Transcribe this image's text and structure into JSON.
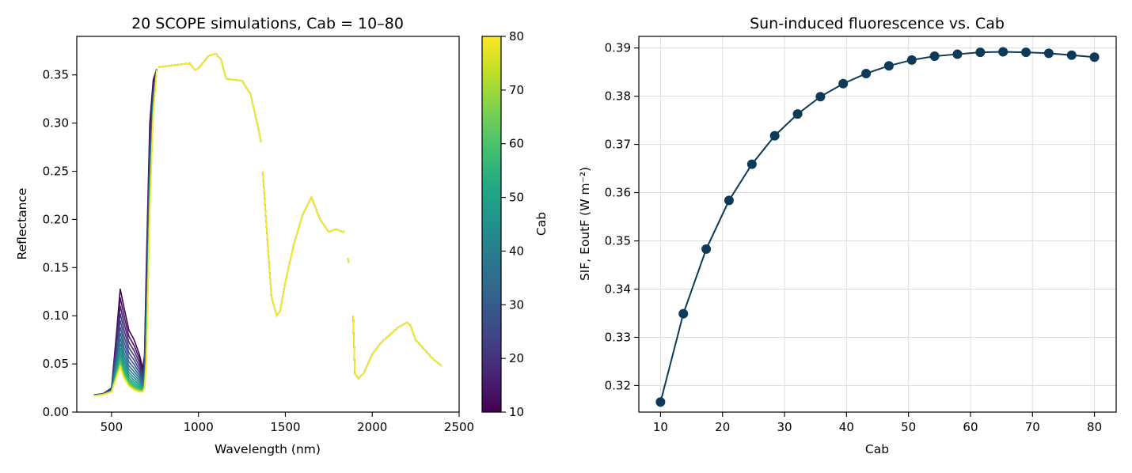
{
  "chart_data": [
    {
      "type": "line",
      "title": "20 SCOPE simulations, Cab = 10–80",
      "xlabel": "Wavelength (nm)",
      "ylabel": "Reflectance",
      "xlim": [
        300,
        2500
      ],
      "ylim": [
        0,
        0.39
      ],
      "xticks": [
        500,
        1000,
        1500,
        2000,
        2500
      ],
      "xtick_labels": [
        "500",
        "1000",
        "1500",
        "2000",
        "2500"
      ],
      "yticks": [
        0,
        0.05,
        0.1,
        0.15,
        0.2,
        0.25,
        0.3,
        0.35
      ],
      "ytick_labels": [
        "0.00",
        "0.05",
        "0.10",
        "0.15",
        "0.20",
        "0.25",
        "0.30",
        "0.35"
      ],
      "grid": false,
      "colormap": "viridis",
      "colorbar": {
        "label": "Cab",
        "range": [
          10,
          80
        ],
        "ticks": [
          10,
          20,
          30,
          40,
          50,
          60,
          70,
          80
        ],
        "tick_labels": [
          "10",
          "20",
          "30",
          "40",
          "50",
          "60",
          "70",
          "80"
        ]
      },
      "n_series": 20,
      "cab_range": [
        10,
        80
      ],
      "visible_region_wavelength": [
        400,
        750
      ],
      "visible_region": {
        "wavelength": [
          400,
          450,
          500,
          530,
          550,
          570,
          600,
          630,
          660,
          680,
          690,
          700,
          720,
          740,
          760
        ],
        "reflectance_cab_10": [
          0.018,
          0.019,
          0.025,
          0.085,
          0.128,
          0.11,
          0.085,
          0.075,
          0.06,
          0.045,
          0.06,
          0.15,
          0.3,
          0.345,
          0.356
        ],
        "reflectance_cab_80": [
          0.017,
          0.018,
          0.021,
          0.037,
          0.047,
          0.036,
          0.027,
          0.023,
          0.021,
          0.021,
          0.025,
          0.05,
          0.21,
          0.31,
          0.355
        ]
      },
      "common_spectrum": {
        "wavelength": [
          770,
          850,
          950,
          980,
          1000,
          1060,
          1100,
          1130,
          1160,
          1200,
          1250,
          1300,
          1350,
          1360,
          null,
          1370,
          1400,
          1420,
          1450,
          1470,
          1500,
          1550,
          1600,
          1650,
          1700,
          1750,
          1790,
          1830,
          1840,
          null,
          1860,
          1865,
          null,
          1890,
          1900,
          1920,
          1950,
          2000,
          2050,
          2100,
          2150,
          2200,
          2220,
          2250,
          2300,
          2350,
          2400
        ],
        "reflectance": [
          0.358,
          0.36,
          0.362,
          0.355,
          0.357,
          0.37,
          0.372,
          0.366,
          0.346,
          0.345,
          0.344,
          0.33,
          0.29,
          0.28,
          null,
          0.25,
          0.17,
          0.12,
          0.1,
          0.105,
          0.135,
          0.175,
          0.205,
          0.223,
          0.2,
          0.187,
          0.19,
          0.187,
          0.188,
          null,
          0.16,
          0.155,
          null,
          0.1,
          0.04,
          0.035,
          0.04,
          0.06,
          0.072,
          0.08,
          0.088,
          0.093,
          0.09,
          0.075,
          0.065,
          0.055,
          0.048
        ]
      }
    },
    {
      "type": "line",
      "title": "Sun-induced fluorescence vs. Cab",
      "xlabel": "Cab",
      "ylabel": "SIF, EoutF (W m⁻²)",
      "xlim": [
        6.5,
        83.5
      ],
      "ylim": [
        0.3145,
        0.3924
      ],
      "xticks": [
        10,
        20,
        30,
        40,
        50,
        60,
        70,
        80
      ],
      "xtick_labels": [
        "10",
        "20",
        "30",
        "40",
        "50",
        "60",
        "70",
        "80"
      ],
      "yticks": [
        0.32,
        0.33,
        0.34,
        0.35,
        0.36,
        0.37,
        0.38,
        0.39
      ],
      "ytick_labels": [
        "0.32",
        "0.33",
        "0.34",
        "0.35",
        "0.36",
        "0.37",
        "0.38",
        "0.39"
      ],
      "grid": true,
      "markers": true,
      "color": "#0d3b57",
      "x": [
        10.0,
        13.68,
        17.37,
        21.05,
        24.74,
        28.42,
        32.11,
        35.79,
        39.47,
        43.16,
        46.84,
        50.53,
        54.21,
        57.89,
        61.58,
        65.26,
        68.95,
        72.63,
        76.32,
        80.0
      ],
      "y": [
        0.3166,
        0.3349,
        0.3483,
        0.3584,
        0.3659,
        0.3718,
        0.3763,
        0.3799,
        0.3826,
        0.3847,
        0.3863,
        0.3875,
        0.3883,
        0.3887,
        0.3891,
        0.3892,
        0.3891,
        0.3889,
        0.3885,
        0.3881
      ]
    }
  ]
}
